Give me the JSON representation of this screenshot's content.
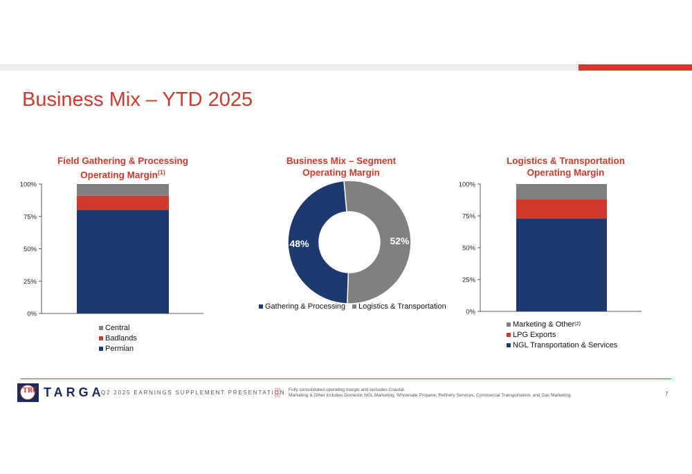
{
  "slide": {
    "title": "Business Mix – YTD 2025"
  },
  "colors": {
    "navy": "#1d3a70",
    "red": "#d0392b",
    "grey": "#808080"
  },
  "charts": {
    "left_title_line1": "Field Gathering & Processing",
    "left_title_line2": "Operating Margin",
    "left_title_sup": "(1)",
    "center_title_line1": "Business Mix – Segment",
    "center_title_line2": "Operating Margin",
    "right_title_line1": "Logistics & Transportation",
    "right_title_line2": "Operating Margin"
  },
  "legends": {
    "left": [
      "Central",
      "Badlands",
      "Permian"
    ],
    "center": [
      "Gathering & Processing",
      "Logistics & Transportation"
    ],
    "right": [
      "Marketing & Other",
      "LPG Exports",
      "NGL Transportation & Services"
    ],
    "right_sup": "(2)"
  },
  "chart_data": [
    {
      "type": "bar",
      "stacked": true,
      "categories": [
        ""
      ],
      "series": [
        {
          "name": "Permian",
          "values": [
            80
          ]
        },
        {
          "name": "Badlands",
          "values": [
            11
          ]
        },
        {
          "name": "Central",
          "values": [
            9
          ]
        }
      ],
      "ylim": [
        0,
        100
      ],
      "yticks": [
        "0%",
        "25%",
        "50%",
        "75%",
        "100%"
      ],
      "legend": "bottom"
    },
    {
      "type": "pie",
      "donut": true,
      "series": [
        {
          "name": "Gathering & Processing",
          "values": [
            48
          ]
        },
        {
          "name": "Logistics & Transportation",
          "values": [
            52
          ]
        }
      ],
      "data_labels": [
        "48%",
        "52%"
      ],
      "legend": "bottom"
    },
    {
      "type": "bar",
      "stacked": true,
      "categories": [
        ""
      ],
      "series": [
        {
          "name": "NGL Transportation & Services",
          "values": [
            73
          ]
        },
        {
          "name": "LPG Exports",
          "values": [
            15
          ]
        },
        {
          "name": "Marketing & Other",
          "values": [
            12
          ]
        }
      ],
      "ylim": [
        0,
        100
      ],
      "yticks": [
        "0%",
        "25%",
        "50%",
        "75%",
        "100%"
      ],
      "legend": "bottom"
    }
  ],
  "footer": {
    "brand": "TARGA",
    "logo_text": "TRC",
    "presentation": "Q2 2025 EARNINGS SUPPLEMENT PRESENTATION",
    "fn1_mark": "(1)",
    "fn2_mark": "(2)",
    "fn1": "Fully consolidated operating margin and excludes Coastal.",
    "fn2": "Marketing & Other includes Domestic NGL Marketing, Wholesale Propane, Refinery Services, Commercial Transportation, and Gas Marketing.",
    "page": "7"
  }
}
